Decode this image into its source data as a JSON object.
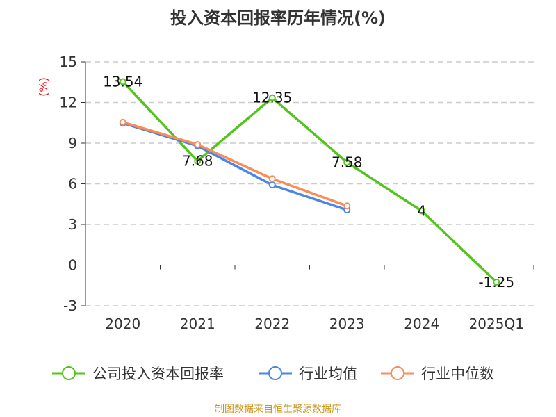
{
  "chart_data": {
    "type": "line",
    "title": "投入资本回报率历年情况(%)",
    "ylabel": "(%)",
    "xlabel": "",
    "categories": [
      "2020",
      "2021",
      "2022",
      "2023",
      "2024",
      "2025Q1"
    ],
    "ylim": [
      -3,
      15
    ],
    "yticks": [
      -3,
      0,
      3,
      6,
      9,
      12,
      15
    ],
    "grid": true,
    "legend_position": "bottom",
    "series": [
      {
        "name": "公司投入资本回报率",
        "color": "#52c41a",
        "values": [
          13.54,
          7.68,
          12.35,
          7.58,
          4,
          -1.25
        ],
        "labels": [
          "13.54",
          "7.68",
          "12.35",
          "7.58",
          "4",
          "-1.25"
        ]
      },
      {
        "name": "行业均值",
        "color": "#4a86e8",
        "values": [
          10.48,
          8.8,
          5.91,
          4.07,
          null,
          null
        ]
      },
      {
        "name": "行业中位数",
        "color": "#fb8c55",
        "values": [
          10.55,
          8.9,
          6.37,
          4.37,
          null,
          null
        ]
      }
    ]
  },
  "source": "制图数据来自恒生聚源数据库"
}
